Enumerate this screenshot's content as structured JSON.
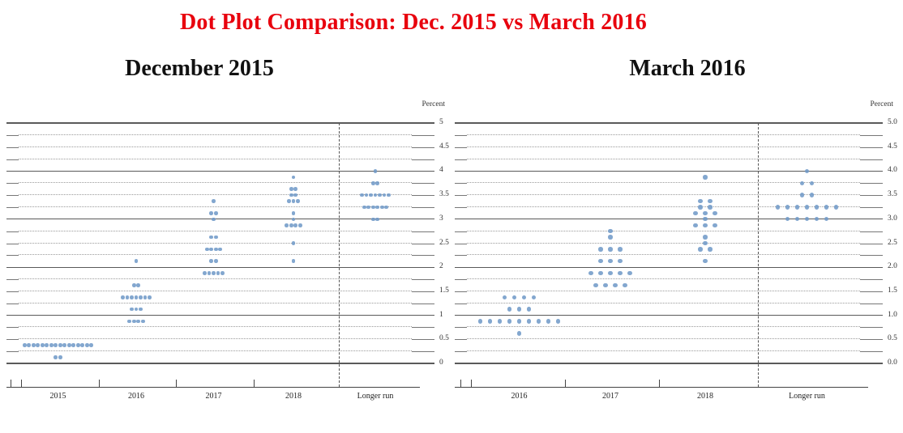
{
  "page": {
    "title": "Dot Plot Comparison: Dec. 2015 vs March 2016"
  },
  "colors": {
    "title_red": "#e8000d",
    "dot_blue": "#6d98c7",
    "grid_solid": "#5a5a5a",
    "grid_dotted": "#9a9a9a",
    "tick_gray": "#777777",
    "axis_dark": "#444444",
    "label_gray": "#333333"
  },
  "chart_data": [
    {
      "type": "scatter",
      "title": "December 2015",
      "unit_label": "Percent",
      "ylim": [
        0,
        5
      ],
      "grid": "solid lines at integers, dotted lines at quarter steps",
      "legend": "none",
      "ytick_labels": [
        "0",
        "0.5",
        "1",
        "1.5",
        "2",
        "2.5",
        "3",
        "3.5",
        "4",
        "4.5",
        "5"
      ],
      "categories": [
        "2015",
        "2016",
        "2017",
        "2018",
        "Longer run"
      ],
      "distributions": [
        {
          "category": "2015",
          "dots": [
            {
              "rate": 0.375,
              "count": 16
            },
            {
              "rate": 0.125,
              "count": 2
            }
          ]
        },
        {
          "category": "2016",
          "dots": [
            {
              "rate": 2.125,
              "count": 1
            },
            {
              "rate": 1.625,
              "count": 2
            },
            {
              "rate": 1.375,
              "count": 7
            },
            {
              "rate": 1.125,
              "count": 3
            },
            {
              "rate": 0.875,
              "count": 4
            }
          ]
        },
        {
          "category": "2017",
          "dots": [
            {
              "rate": 3.375,
              "count": 1
            },
            {
              "rate": 3.125,
              "count": 2
            },
            {
              "rate": 3.0,
              "count": 1
            },
            {
              "rate": 2.625,
              "count": 2
            },
            {
              "rate": 2.375,
              "count": 4
            },
            {
              "rate": 2.125,
              "count": 2
            },
            {
              "rate": 1.875,
              "count": 5
            }
          ]
        },
        {
          "category": "2018",
          "dots": [
            {
              "rate": 3.875,
              "count": 1
            },
            {
              "rate": 3.625,
              "count": 2
            },
            {
              "rate": 3.5,
              "count": 2
            },
            {
              "rate": 3.375,
              "count": 3
            },
            {
              "rate": 3.125,
              "count": 1
            },
            {
              "rate": 3.0,
              "count": 1
            },
            {
              "rate": 2.875,
              "count": 4
            },
            {
              "rate": 2.5,
              "count": 1
            },
            {
              "rate": 2.125,
              "count": 1
            }
          ]
        },
        {
          "category": "Longer run",
          "dots": [
            {
              "rate": 4.0,
              "count": 1
            },
            {
              "rate": 3.75,
              "count": 2
            },
            {
              "rate": 3.5,
              "count": 7
            },
            {
              "rate": 3.25,
              "count": 6
            },
            {
              "rate": 3.0,
              "count": 2
            }
          ]
        }
      ]
    },
    {
      "type": "scatter",
      "title": "March 2016",
      "unit_label": "Percent",
      "ylim": [
        0,
        5
      ],
      "grid": "solid lines at integers, dotted lines at quarter steps",
      "legend": "none",
      "ytick_labels": [
        "0.0",
        "0.5",
        "1.0",
        "1.5",
        "2.0",
        "2.5",
        "3.0",
        "3.5",
        "4.0",
        "4.5",
        "5.0"
      ],
      "categories": [
        "2016",
        "2017",
        "2018",
        "Longer run"
      ],
      "distributions": [
        {
          "category": "2016",
          "dots": [
            {
              "rate": 1.375,
              "count": 4
            },
            {
              "rate": 1.125,
              "count": 3
            },
            {
              "rate": 0.875,
              "count": 9
            },
            {
              "rate": 0.625,
              "count": 1
            }
          ]
        },
        {
          "category": "2017",
          "dots": [
            {
              "rate": 2.75,
              "count": 1
            },
            {
              "rate": 2.625,
              "count": 1
            },
            {
              "rate": 2.375,
              "count": 3
            },
            {
              "rate": 2.125,
              "count": 3
            },
            {
              "rate": 1.875,
              "count": 5
            },
            {
              "rate": 1.625,
              "count": 4
            }
          ]
        },
        {
          "category": "2018",
          "dots": [
            {
              "rate": 3.875,
              "count": 1
            },
            {
              "rate": 3.375,
              "count": 2
            },
            {
              "rate": 3.25,
              "count": 2
            },
            {
              "rate": 3.125,
              "count": 3
            },
            {
              "rate": 3.0,
              "count": 1
            },
            {
              "rate": 2.875,
              "count": 3
            },
            {
              "rate": 2.625,
              "count": 1
            },
            {
              "rate": 2.5,
              "count": 1
            },
            {
              "rate": 2.375,
              "count": 2
            },
            {
              "rate": 2.125,
              "count": 1
            }
          ]
        },
        {
          "category": "Longer run",
          "dots": [
            {
              "rate": 4.0,
              "count": 1
            },
            {
              "rate": 3.75,
              "count": 2
            },
            {
              "rate": 3.5,
              "count": 2
            },
            {
              "rate": 3.25,
              "count": 7
            },
            {
              "rate": 3.0,
              "count": 5
            }
          ]
        }
      ]
    }
  ]
}
